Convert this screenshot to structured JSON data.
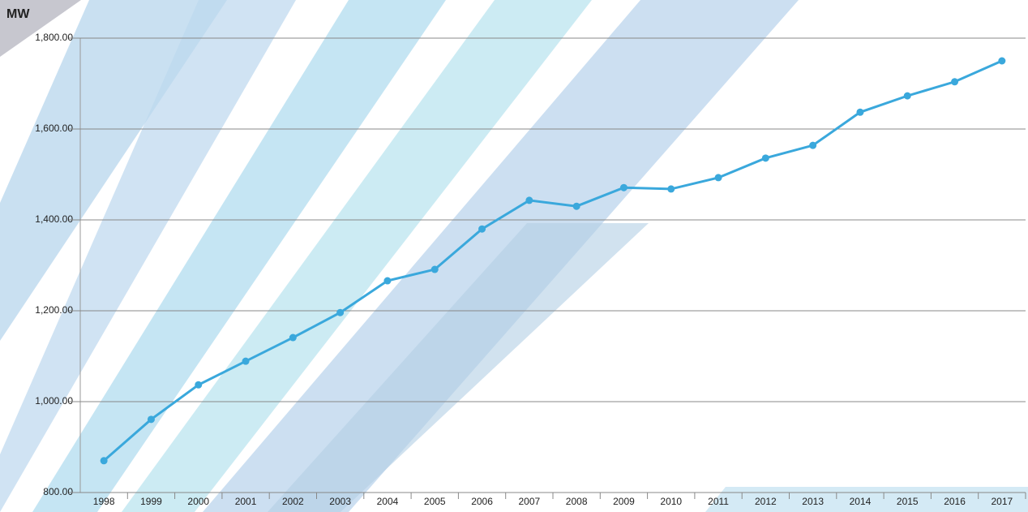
{
  "chart_data": {
    "type": "line",
    "y_label": "MW",
    "categories": [
      "1998",
      "1999",
      "2000",
      "2001",
      "2002",
      "2003",
      "2004",
      "2005",
      "2006",
      "2007",
      "2008",
      "2009",
      "2010",
      "2011",
      "2012",
      "2013",
      "2014",
      "2015",
      "2016",
      "2017"
    ],
    "series": [
      {
        "color": "#3aa8dc",
        "values": [
          870,
          961,
          1037,
          1089,
          1141,
          1196,
          1266,
          1291,
          1380,
          1443,
          1430,
          1471,
          1468,
          1493,
          1536,
          1564,
          1637,
          1673,
          1704,
          1750
        ]
      }
    ],
    "ylim": [
      800,
      1800
    ],
    "yticks": [
      {
        "value": 800,
        "label": "800.00"
      },
      {
        "value": 1000,
        "label": "1,000.00"
      },
      {
        "value": 1200,
        "label": "1,200.00"
      },
      {
        "value": 1400,
        "label": "1,400.00"
      },
      {
        "value": 1600,
        "label": "1,600.00"
      },
      {
        "value": 1800,
        "label": "1,800.00"
      }
    ],
    "grid": true
  }
}
